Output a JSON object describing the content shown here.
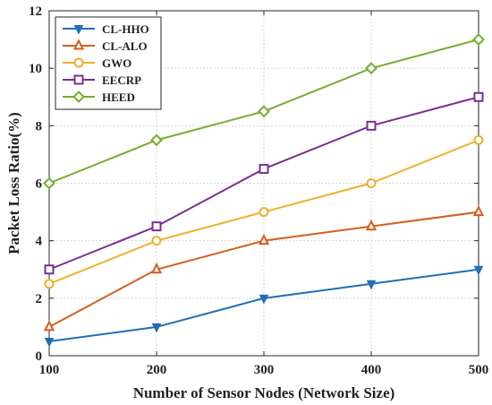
{
  "chart_data": {
    "type": "line",
    "x": [
      100,
      200,
      300,
      400,
      500
    ],
    "xlabel": "Number of Sensor Nodes (Network Size)",
    "ylabel": "Packet Loss Ratio(%)",
    "xlim": [
      100,
      500
    ],
    "ylim": [
      0,
      12
    ],
    "xticks": [
      100,
      200,
      300,
      400,
      500
    ],
    "yticks": [
      0,
      2,
      4,
      6,
      8,
      10,
      12
    ],
    "grid": true,
    "legend_position": "top-left",
    "series": [
      {
        "name": "CL-HHO",
        "values": [
          0.5,
          1.0,
          2.0,
          2.5,
          3.0
        ],
        "color": "#1f6fb4",
        "marker": "triangle-down"
      },
      {
        "name": "CL-ALO",
        "values": [
          1.0,
          3.0,
          4.0,
          4.5,
          5.0
        ],
        "color": "#d35f1c",
        "marker": "triangle-up"
      },
      {
        "name": "GWO",
        "values": [
          2.5,
          4.0,
          5.0,
          6.0,
          7.5
        ],
        "color": "#ecb12c",
        "marker": "circle"
      },
      {
        "name": "EECRP",
        "values": [
          3.0,
          4.5,
          6.5,
          8.0,
          9.0
        ],
        "color": "#7b2f8f",
        "marker": "square"
      },
      {
        "name": "HEED",
        "values": [
          6.0,
          7.5,
          8.5,
          10.0,
          11.0
        ],
        "color": "#77ac30",
        "marker": "diamond"
      }
    ]
  }
}
